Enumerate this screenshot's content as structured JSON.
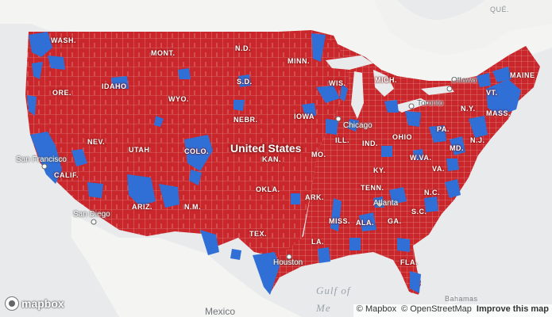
{
  "map": {
    "colors": {
      "republican": "#c9272b",
      "democrat": "#2f6fd6",
      "water": "#e8eaec",
      "land": "#f4f4f2",
      "county_border": "#e7a7a7"
    },
    "country_label": "United States",
    "state_labels": [
      "WASH.",
      "MONT.",
      "N.D.",
      "MINN.",
      "ORE.",
      "IDAHO",
      "WYO.",
      "S.D.",
      "WIS.",
      "MICH.",
      "MAINE",
      "VT.",
      "N.Y.",
      "MASS.",
      "NEBR.",
      "IOWA",
      "ILL.",
      "IND.",
      "OHIO",
      "PA.",
      "N.J.",
      "MD.",
      "NEV.",
      "UTAH",
      "COLO.",
      "KAN.",
      "MO.",
      "KY.",
      "W.VA.",
      "VA.",
      "CALIF.",
      "OKLA.",
      "ARK.",
      "TENN.",
      "N.C.",
      "ARIZ.",
      "N.M.",
      "MISS.",
      "ALA.",
      "GA.",
      "S.C.",
      "TEX.",
      "LA.",
      "FLA."
    ],
    "cities": [
      "San Francisco",
      "San Diego",
      "Chicago",
      "Atlanta",
      "Houston",
      "Toronto",
      "Ottawa"
    ],
    "basemap_labels": [
      "QUÉ."
    ],
    "water_label": "Gulf of\nMe",
    "mexico_label": "Mexico",
    "bahamas_label": "Bahamas"
  },
  "logo": {
    "text": "mapbox",
    "icon": "mapbox-logo-icon"
  },
  "attribution": {
    "mapbox": "© Mapbox",
    "osm": "© OpenStreetMap",
    "improve": "Improve this map"
  }
}
